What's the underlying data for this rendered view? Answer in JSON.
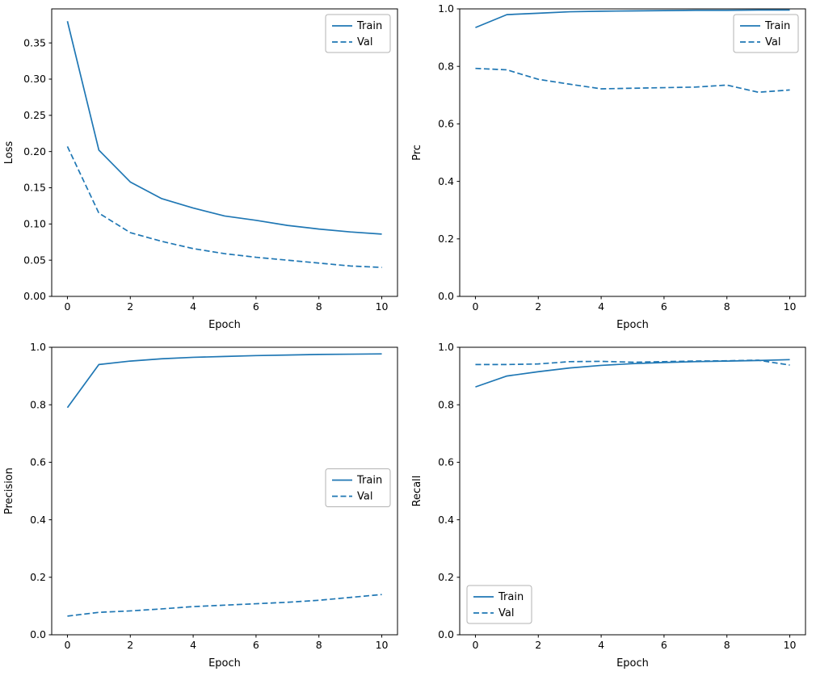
{
  "figure": {
    "background": "#ffffff",
    "accent_color": "#1f77b4",
    "axis_color": "#000000",
    "legend_border_color": "#b3b3b3"
  },
  "chart_data": [
    {
      "id": "loss",
      "type": "line",
      "title": "",
      "xlabel": "Epoch",
      "ylabel": "Loss",
      "legend_position": "upper-right",
      "legend_entries": [
        "Train",
        "Val"
      ],
      "x": [
        0,
        1,
        2,
        3,
        4,
        5,
        6,
        7,
        8,
        9,
        10
      ],
      "xlim": [
        -0.5,
        10.5
      ],
      "ylim": [
        0.0,
        0.397
      ],
      "xticks": [
        0,
        2,
        4,
        6,
        8,
        10
      ],
      "yticks": [
        0.0,
        0.05,
        0.1,
        0.15,
        0.2,
        0.25,
        0.3,
        0.35
      ],
      "ytick_decimals": 2,
      "grid": false,
      "series": [
        {
          "name": "Train",
          "style": "solid",
          "values": [
            0.38,
            0.202,
            0.158,
            0.135,
            0.122,
            0.111,
            0.105,
            0.098,
            0.093,
            0.089,
            0.086
          ]
        },
        {
          "name": "Val",
          "style": "dashed",
          "values": [
            0.207,
            0.115,
            0.088,
            0.076,
            0.066,
            0.059,
            0.054,
            0.05,
            0.046,
            0.042,
            0.04
          ]
        }
      ]
    },
    {
      "id": "prc",
      "type": "line",
      "title": "",
      "xlabel": "Epoch",
      "ylabel": "Prc",
      "legend_position": "upper-right",
      "legend_entries": [
        "Train",
        "Val"
      ],
      "x": [
        0,
        1,
        2,
        3,
        4,
        5,
        6,
        7,
        8,
        9,
        10
      ],
      "xlim": [
        -0.5,
        10.5
      ],
      "ylim": [
        0.0,
        1.0
      ],
      "xticks": [
        0,
        2,
        4,
        6,
        8,
        10
      ],
      "yticks": [
        0.0,
        0.2,
        0.4,
        0.6,
        0.8,
        1.0
      ],
      "ytick_decimals": 1,
      "grid": false,
      "series": [
        {
          "name": "Train",
          "style": "solid",
          "values": [
            0.935,
            0.98,
            0.985,
            0.99,
            0.992,
            0.993,
            0.994,
            0.995,
            0.995,
            0.996,
            0.996
          ]
        },
        {
          "name": "Val",
          "style": "dashed",
          "values": [
            0.793,
            0.788,
            0.755,
            0.738,
            0.722,
            0.724,
            0.726,
            0.728,
            0.735,
            0.71,
            0.718
          ]
        }
      ]
    },
    {
      "id": "precision",
      "type": "line",
      "title": "",
      "xlabel": "Epoch",
      "ylabel": "Precision",
      "legend_position": "center-right",
      "legend_entries": [
        "Train",
        "Val"
      ],
      "x": [
        0,
        1,
        2,
        3,
        4,
        5,
        6,
        7,
        8,
        9,
        10
      ],
      "xlim": [
        -0.5,
        10.5
      ],
      "ylim": [
        0.0,
        1.0
      ],
      "xticks": [
        0,
        2,
        4,
        6,
        8,
        10
      ],
      "yticks": [
        0.0,
        0.2,
        0.4,
        0.6,
        0.8,
        1.0
      ],
      "ytick_decimals": 1,
      "grid": false,
      "series": [
        {
          "name": "Train",
          "style": "solid",
          "values": [
            0.79,
            0.94,
            0.952,
            0.96,
            0.965,
            0.968,
            0.971,
            0.973,
            0.975,
            0.976,
            0.977
          ]
        },
        {
          "name": "Val",
          "style": "dashed",
          "values": [
            0.065,
            0.078,
            0.083,
            0.09,
            0.098,
            0.103,
            0.108,
            0.113,
            0.12,
            0.13,
            0.14
          ]
        }
      ]
    },
    {
      "id": "recall",
      "type": "line",
      "title": "",
      "xlabel": "Epoch",
      "ylabel": "Recall",
      "legend_position": "lower-left",
      "legend_entries": [
        "Train",
        "Val"
      ],
      "x": [
        0,
        1,
        2,
        3,
        4,
        5,
        6,
        7,
        8,
        9,
        10
      ],
      "xlim": [
        -0.5,
        10.5
      ],
      "ylim": [
        0.0,
        1.0
      ],
      "xticks": [
        0,
        2,
        4,
        6,
        8,
        10
      ],
      "yticks": [
        0.0,
        0.2,
        0.4,
        0.6,
        0.8,
        1.0
      ],
      "ytick_decimals": 1,
      "grid": false,
      "series": [
        {
          "name": "Train",
          "style": "solid",
          "values": [
            0.862,
            0.9,
            0.915,
            0.928,
            0.937,
            0.943,
            0.947,
            0.95,
            0.952,
            0.954,
            0.957
          ]
        },
        {
          "name": "Val",
          "style": "dashed",
          "values": [
            0.94,
            0.94,
            0.942,
            0.95,
            0.951,
            0.948,
            0.95,
            0.952,
            0.953,
            0.955,
            0.938
          ]
        }
      ]
    }
  ]
}
